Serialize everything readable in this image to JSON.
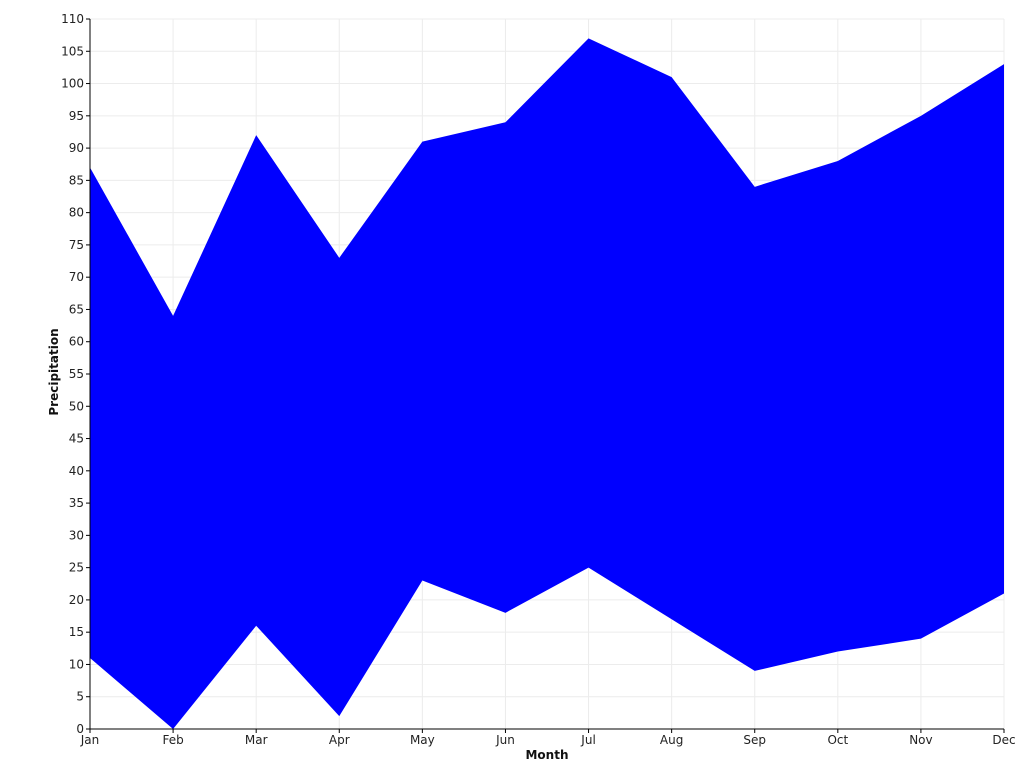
{
  "chart_data": {
    "type": "area",
    "title": "",
    "xlabel": "Month",
    "ylabel": "Precipitation",
    "categories": [
      "Jan",
      "Feb",
      "Mar",
      "Apr",
      "May",
      "Jun",
      "Jul",
      "Aug",
      "Sep",
      "Oct",
      "Nov",
      "Dec"
    ],
    "lower": [
      11,
      0,
      16,
      2,
      23,
      18,
      25,
      17,
      9,
      12,
      14,
      21
    ],
    "upper": [
      87,
      64,
      92,
      73,
      91,
      94,
      107,
      101,
      84,
      88,
      95,
      103
    ],
    "ylim": [
      0,
      110
    ],
    "ytick_step": 5,
    "grid": true,
    "legend": "none",
    "fill_color": "#0000ff"
  }
}
